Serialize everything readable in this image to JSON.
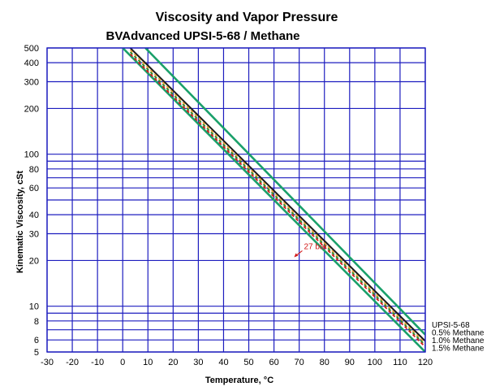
{
  "chart_data": {
    "type": "line",
    "title": "Viscosity and Vapor Pressure",
    "subtitle": "BVAdvanced UPSI-5-68 / Methane",
    "xlabel": "Temperature, °C",
    "ylabel": "Kinematic Viscosity, cSt",
    "xlim": [
      -30,
      120
    ],
    "ylim": [
      5,
      500
    ],
    "y_scale": "log",
    "x_ticks": [
      "-30",
      "-20",
      "-10",
      "0",
      "10",
      "20",
      "30",
      "40",
      "50",
      "60",
      "70",
      "80",
      "90",
      "100",
      "110",
      "120"
    ],
    "y_ticks": [
      "5",
      "6",
      "8",
      "10",
      "20",
      "30",
      "40",
      "60",
      "80",
      "100",
      "200",
      "300",
      "400",
      "500"
    ],
    "grid": true,
    "x_gridlines": [
      -30,
      -20,
      -10,
      0,
      10,
      20,
      30,
      40,
      50,
      60,
      70,
      80,
      90,
      100,
      110,
      120
    ],
    "y_gridlines": [
      5,
      6,
      7,
      8,
      9,
      10,
      20,
      30,
      40,
      50,
      60,
      70,
      80,
      90,
      100,
      200,
      300,
      400,
      500
    ],
    "legend_position": "right",
    "series": [
      {
        "name": "UPSI-5-68",
        "x": [
          3,
          120
        ],
        "y": [
          500,
          5.9
        ],
        "color": "#1a1a1a",
        "style": "solid"
      },
      {
        "name": "0.5% Methane",
        "x": [
          3,
          120
        ],
        "y": [
          485,
          5.7
        ],
        "color": "#e8a23c",
        "style": "dashed"
      },
      {
        "name": "1.0% Methane",
        "x": [
          3,
          120
        ],
        "y": [
          470,
          5.55
        ],
        "color": "#2e8b2e",
        "style": "dashed"
      },
      {
        "name": "1.5% Methane",
        "x": [
          3,
          120
        ],
        "y": [
          455,
          5.4
        ],
        "color": "#d21a1a",
        "style": "dashed"
      }
    ],
    "bands": [
      {
        "x": [
          9,
          120
        ],
        "y": [
          500,
          6.5
        ],
        "color": "#1aa06a"
      },
      {
        "x": [
          0,
          120
        ],
        "y": [
          500,
          5.0
        ],
        "color": "#1aa06a"
      }
    ],
    "annotations": [
      {
        "text": "27 bar",
        "x": 68,
        "y": 21,
        "color": "#d21a1a"
      }
    ]
  }
}
